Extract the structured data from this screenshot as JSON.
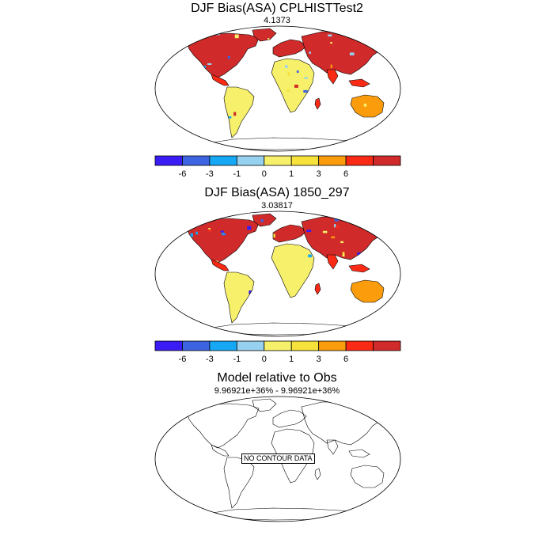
{
  "panels": [
    {
      "title": "DJF Bias(ASA) CPLHISTTest2",
      "subtitle": "4.1373"
    },
    {
      "title": "DJF Bias(ASA) 1850_297",
      "subtitle": "3.03817"
    },
    {
      "title": "Model relative to Obs",
      "subtitle": "9.96921e+36% - 9.96921e+36%",
      "no_data_label": "NO CONTOUR DATA"
    }
  ],
  "colorbar": {
    "colors": [
      "#3a1cf5",
      "#3c64e0",
      "#16a8f5",
      "#96d1f0",
      "#f7f06a",
      "#f7e13b",
      "#fb9c0c",
      "#fb2a14",
      "#d12a2a"
    ],
    "tick_labels": [
      "-6",
      "-3",
      "-1",
      "0",
      "1",
      "3",
      "6"
    ]
  },
  "chart_data": {
    "type": "heatmap",
    "projection": "Robinson",
    "quantity": "DJF bias (ASA)",
    "levels": [
      -6,
      -3,
      -1,
      0,
      1,
      3,
      6
    ],
    "maps": [
      {
        "title": "DJF Bias(ASA) CPLHISTTest2",
        "mean": "4.1373"
      },
      {
        "title": "DJF Bias(ASA) 1850_297",
        "mean": "3.03817"
      },
      {
        "title": "Model relative to Obs",
        "range": "9.96921e+36% - 9.96921e+36%",
        "has_data": false
      }
    ]
  }
}
